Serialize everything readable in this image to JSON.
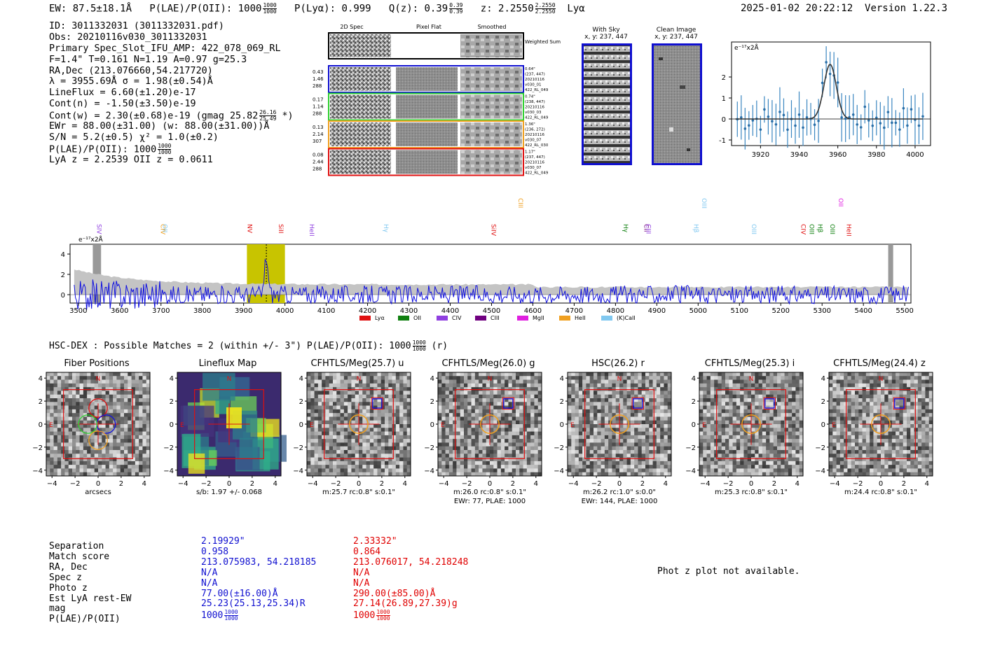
{
  "header": {
    "ew": "EW: 87.5±18.1Å",
    "plae_label": "P(LAE)/P(OII): 1000",
    "plae_frac": [
      "1000",
      "1000"
    ],
    "plya": "P(Lyα): 0.999",
    "qz_label": "Q(z): 0.39",
    "qz_frac": [
      "0.39",
      "0.39"
    ],
    "z_label": "z: 2.2550",
    "z_frac": [
      "2.2550",
      "2.2550"
    ],
    "z_line": "Lyα",
    "timestamp": "2025-01-02 20:22:12",
    "version": "Version 1.22.3"
  },
  "info": {
    "id": "ID: 3011332031 (3011332031.pdf)",
    "obs": "Obs: 20210116v030_3011332031",
    "slot": "Primary Spec_Slot_IFU_AMP: 422_078_069_RL",
    "params": "F=1.4\"  T=0.161  N=1.19  A=0.97  g=25.3",
    "radec": "RA,Dec (213.076660,54.217720)",
    "lambda": "λ = 3955.69Å  σ = 1.98(±0.54)Å",
    "lineflux": "LineFlux = 6.60(±1.20)e-17",
    "contn": "Cont(n) = -1.50(±3.50)e-19",
    "contw": "Cont(w) = 2.30(±0.68)e-19 (gmag 25.82",
    "contw_frac": [
      "26.16",
      "25.49"
    ],
    "contw_end": "*)",
    "ewr": "EWr = 88.00(±31.00) (w: 88.00(±31.00))Å",
    "sn": "S/N = 5.2(±0.5)  χ² = 1.0(±0.2)",
    "plae": "P(LAE)/P(OII): 1000",
    "plae_frac": [
      "1000",
      "1000"
    ],
    "lya_z": "LyA z = 2.2539  OII z = 0.0611"
  },
  "cutouts": {
    "col_titles": [
      "2D Spec",
      "Pixel Flat",
      "Smoothed"
    ],
    "weighted_label": "Weighted Sum",
    "rows": [
      {
        "color": "#1010d0",
        "left": [
          "0.43",
          "1.46",
          "288"
        ],
        "right": [
          "0.64\"",
          "(237, 447)",
          "20210116",
          "v030_01",
          "422_RL_049"
        ]
      },
      {
        "color": "#30d030",
        "left": [
          "0.17",
          "1.14",
          "288"
        ],
        "right": [
          "0.74\"",
          "(238, 447)",
          "20210116",
          "v030_03",
          "422_RL_049"
        ]
      },
      {
        "color": "#f0a020",
        "left": [
          "0.13",
          "2.14",
          "307"
        ],
        "right": [
          "1.36\"",
          "(236, 272)",
          "20210116",
          "v030_07",
          "422_RL_030"
        ]
      },
      {
        "color": "#e01010",
        "left": [
          "0.08",
          "2.44",
          "288"
        ],
        "right": [
          "1.17\"",
          "(237, 447)",
          "20210116",
          "v030_07",
          "422_RL_049"
        ]
      }
    ]
  },
  "sky": {
    "with_sky_title": "With Sky",
    "with_sky_coords": "x, y: 237, 447",
    "clean_title": "Clean Image",
    "clean_coords": "x, y: 237, 447"
  },
  "zoom_plot": {
    "unit_label": "e⁻¹⁷x2Å",
    "x_ticks": [
      "3920",
      "3940",
      "3960",
      "3980",
      "4000"
    ],
    "y_ticks": [
      "2",
      "1",
      "0",
      "-1"
    ]
  },
  "spectrum": {
    "unit_label": "e⁻¹⁷x2Å",
    "x_ticks": [
      "3500",
      "3600",
      "3700",
      "3800",
      "3900",
      "4000",
      "4100",
      "4200",
      "4300",
      "4400",
      "4500",
      "4600",
      "4700",
      "4800",
      "4900",
      "5000",
      "5100",
      "5200",
      "5300",
      "5400",
      "5500"
    ],
    "y_ticks": [
      "4",
      "2",
      "0"
    ],
    "lines": [
      {
        "label": "SIV",
        "color": "#9040e0"
      },
      {
        "label": "CIV",
        "color": "#f0a020"
      },
      {
        "label": "OII",
        "color": "#80c8f0"
      },
      {
        "label": "NV",
        "color": "#e01010"
      },
      {
        "label": "SiII",
        "color": "#e01010"
      },
      {
        "label": "HeII",
        "color": "#9040e0"
      },
      {
        "label": "Hγ",
        "color": "#80c8f0"
      },
      {
        "label": "SiIV",
        "color": "#e01010"
      },
      {
        "label": "CIII",
        "color": "#f0a020"
      },
      {
        "label": "Hγ",
        "color": "#108010"
      },
      {
        "label": "CII",
        "color": "#700080"
      },
      {
        "label": "CIII",
        "color": "#9040e0"
      },
      {
        "label": "Hβ",
        "color": "#80c8f0"
      },
      {
        "label": "OIII",
        "color": "#80c8f0"
      },
      {
        "label": "OIII",
        "color": "#80c8f0"
      },
      {
        "label": "CIV",
        "color": "#e01010"
      },
      {
        "label": "Hβ",
        "color": "#108010"
      },
      {
        "label": "OIII",
        "color": "#108010"
      },
      {
        "label": "OIII",
        "color": "#108010"
      },
      {
        "label": "OII",
        "color": "#e020e0"
      },
      {
        "label": "HeII",
        "color": "#e01010"
      }
    ],
    "legend": [
      {
        "label": "Lyα",
        "color": "#e01010"
      },
      {
        "label": "OII",
        "color": "#108010"
      },
      {
        "label": "CIV",
        "color": "#9040e0"
      },
      {
        "label": "CIII",
        "color": "#700080"
      },
      {
        "label": "MgII",
        "color": "#e020e0"
      },
      {
        "label": "HeII",
        "color": "#f0a020"
      },
      {
        "label": "(K)CaII",
        "color": "#80c8f0"
      }
    ]
  },
  "hsc": {
    "summary": "HSC-DEX : Possible Matches = 2 (within +/- 3\")  P(LAE)/P(OII): 1000",
    "summary_frac": [
      "1000",
      "1000"
    ],
    "summary_end": "(r)",
    "panels": [
      {
        "title": "Fiber Positions",
        "caption": "arcsecs",
        "caption2": ""
      },
      {
        "title": "Lineflux Map",
        "caption": "s/b: 1.97 +/- 0.068",
        "caption2": ""
      },
      {
        "title": "CFHTLS/Meg(25.7) u",
        "caption": "m:25.7 rc:0.8\"  s:0.1\"",
        "caption2": ""
      },
      {
        "title": "CFHTLS/Meg(26.0) g",
        "caption": "m:26.0 rc:0.8\"  s:0.1\"",
        "caption2": "EWr: 77, PLAE: 1000"
      },
      {
        "title": "HSC(26.2) r",
        "caption": "m:26.2 rc:1.0\"  s:0.0\"",
        "caption2": "EWr: 144, PLAE: 1000"
      },
      {
        "title": "CFHTLS/Meg(25.3) i",
        "caption": "m:25.3 rc:0.8\"  s:0.1\"",
        "caption2": ""
      },
      {
        "title": "CFHTLS/Meg(24.4) z",
        "caption": "m:24.4 rc:0.8\"  s:0.1\"",
        "caption2": ""
      }
    ],
    "y_ticks": [
      "4",
      "2",
      "0",
      "−2",
      "−4"
    ],
    "x_ticks": [
      "−4",
      "−2",
      "0",
      "2",
      "4"
    ],
    "north": "N",
    "east": "E"
  },
  "matches": {
    "labels": [
      "Separation",
      "Match score",
      "RA, Dec",
      "Spec z",
      "Photo z",
      "Est LyA rest-EW",
      "mag",
      "P(LAE)/P(OII)"
    ],
    "col1": [
      "2.19929\"",
      "0.958",
      "213.075983, 54.218185",
      "N/A",
      "N/A",
      "77.00(±16.00)Å",
      "25.23(25.13,25.34)R",
      "1000"
    ],
    "col1_frac": [
      "1000",
      "1000"
    ],
    "col2": [
      "2.33332\"",
      "0.864",
      "213.076017, 54.218248",
      "N/A",
      "N/A",
      "290.00(±85.00)Å",
      "27.14(26.89,27.39)g",
      "1000"
    ],
    "col2_frac": [
      "1000",
      "1000"
    ],
    "photz_note": "Phot z plot not available."
  }
}
